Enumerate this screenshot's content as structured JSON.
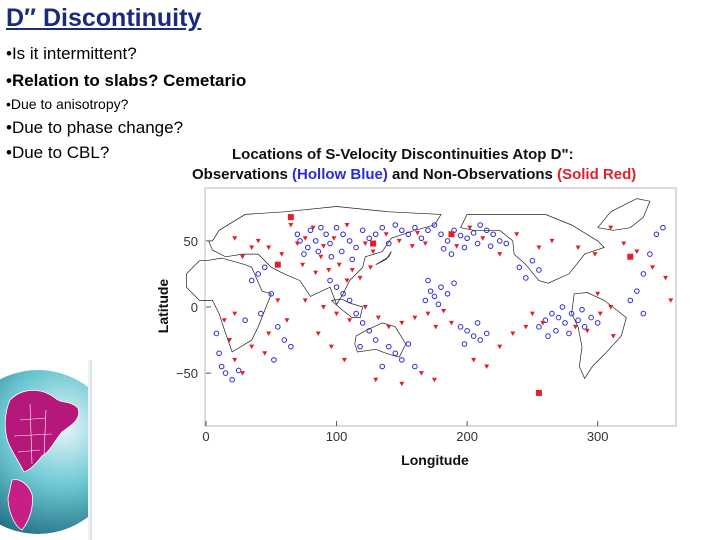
{
  "slide": {
    "title": "D″ Discontinuity",
    "bullets": [
      "•Is it intermittent?",
      "•Relation to slabs? Cemetario",
      "•Due to anisotropy?",
      "•Due to phase change?",
      "•Due to CBL?"
    ]
  },
  "figure": {
    "title_line1": "Locations of S-Velocity Discontinuities Atop D\":",
    "title_line2_a": "Observations ",
    "title_line2_b": "(Hollow Blue)",
    "title_line2_c": " and Non-Observations ",
    "title_line2_d": "(Solid Red)",
    "colors": {
      "observation": "#2c2cd6",
      "non_observation": "#e0202a",
      "land": "#222222"
    }
  },
  "chart_data": {
    "type": "scatter",
    "xlabel": "Longitude",
    "ylabel": "Latitude",
    "xlim": [
      0,
      360
    ],
    "ylim": [
      -90,
      90
    ],
    "x_ticks": [
      "0",
      "100",
      "200",
      "300"
    ],
    "y_ticks": [
      "50",
      "0",
      "−50"
    ],
    "series": [
      {
        "name": "Observations (Hollow Blue)",
        "marker": "hollow",
        "points": [
          [
            70,
            55
          ],
          [
            72,
            50
          ],
          [
            80,
            58
          ],
          [
            78,
            45
          ],
          [
            84,
            50
          ],
          [
            88,
            60
          ],
          [
            92,
            55
          ],
          [
            86,
            42
          ],
          [
            75,
            40
          ],
          [
            95,
            48
          ],
          [
            100,
            60
          ],
          [
            105,
            55
          ],
          [
            110,
            50
          ],
          [
            96,
            38
          ],
          [
            104,
            42
          ],
          [
            115,
            45
          ],
          [
            120,
            58
          ],
          [
            125,
            52
          ],
          [
            112,
            36
          ],
          [
            130,
            55
          ],
          [
            135,
            60
          ],
          [
            140,
            48
          ],
          [
            145,
            62
          ],
          [
            150,
            58
          ],
          [
            155,
            55
          ],
          [
            160,
            60
          ],
          [
            165,
            52
          ],
          [
            170,
            58
          ],
          [
            175,
            62
          ],
          [
            180,
            55
          ],
          [
            185,
            50
          ],
          [
            190,
            58
          ],
          [
            195,
            54
          ],
          [
            200,
            52
          ],
          [
            205,
            56
          ],
          [
            210,
            62
          ],
          [
            215,
            58
          ],
          [
            220,
            55
          ],
          [
            225,
            50
          ],
          [
            230,
            48
          ],
          [
            198,
            45
          ],
          [
            208,
            48
          ],
          [
            218,
            46
          ],
          [
            182,
            44
          ],
          [
            188,
            40
          ],
          [
            170,
            20
          ],
          [
            172,
            12
          ],
          [
            175,
            8
          ],
          [
            180,
            15
          ],
          [
            185,
            10
          ],
          [
            190,
            18
          ],
          [
            168,
            5
          ],
          [
            178,
            2
          ],
          [
            195,
            -15
          ],
          [
            200,
            -18
          ],
          [
            205,
            -22
          ],
          [
            210,
            -25
          ],
          [
            215,
            -20
          ],
          [
            198,
            -28
          ],
          [
            208,
            -12
          ],
          [
            260,
            -10
          ],
          [
            265,
            -5
          ],
          [
            270,
            -8
          ],
          [
            275,
            -12
          ],
          [
            280,
            -5
          ],
          [
            285,
            -10
          ],
          [
            290,
            -15
          ],
          [
            295,
            -8
          ],
          [
            300,
            -12
          ],
          [
            255,
            -15
          ],
          [
            268,
            -18
          ],
          [
            278,
            -20
          ],
          [
            288,
            -2
          ],
          [
            273,
            0
          ],
          [
            262,
            -22
          ],
          [
            240,
            30
          ],
          [
            250,
            35
          ],
          [
            255,
            28
          ],
          [
            245,
            22
          ],
          [
            325,
            5
          ],
          [
            330,
            12
          ],
          [
            335,
            -5
          ],
          [
            40,
            25
          ],
          [
            45,
            30
          ],
          [
            35,
            20
          ],
          [
            50,
            10
          ],
          [
            42,
            -5
          ],
          [
            55,
            -15
          ],
          [
            60,
            -25
          ],
          [
            30,
            -10
          ],
          [
            65,
            -30
          ],
          [
            52,
            -40
          ],
          [
            8,
            -20
          ],
          [
            10,
            -35
          ],
          [
            12,
            -45
          ],
          [
            15,
            -50
          ],
          [
            20,
            -55
          ],
          [
            25,
            -48
          ],
          [
            100,
            15
          ],
          [
            105,
            10
          ],
          [
            110,
            5
          ],
          [
            95,
            20
          ],
          [
            115,
            -5
          ],
          [
            120,
            -12
          ],
          [
            125,
            -18
          ],
          [
            130,
            -25
          ],
          [
            118,
            -30
          ],
          [
            140,
            -30
          ],
          [
            145,
            -35
          ],
          [
            150,
            -40
          ],
          [
            155,
            -28
          ],
          [
            160,
            -45
          ],
          [
            135,
            -45
          ],
          [
            335,
            25
          ],
          [
            340,
            40
          ],
          [
            345,
            55
          ],
          [
            350,
            60
          ]
        ]
      },
      {
        "name": "Non-Observations (Solid Red)",
        "marker": "solid",
        "points": [
          [
            65,
            62
          ],
          [
            76,
            52
          ],
          [
            82,
            60
          ],
          [
            90,
            46
          ],
          [
            98,
            52
          ],
          [
            108,
            62
          ],
          [
            122,
            48
          ],
          [
            128,
            42
          ],
          [
            138,
            55
          ],
          [
            148,
            50
          ],
          [
            158,
            46
          ],
          [
            162,
            56
          ],
          [
            168,
            48
          ],
          [
            192,
            46
          ],
          [
            202,
            60
          ],
          [
            212,
            52
          ],
          [
            70,
            48
          ],
          [
            88,
            38
          ],
          [
            94,
            28
          ],
          [
            102,
            32
          ],
          [
            108,
            20
          ],
          [
            112,
            28
          ],
          [
            118,
            22
          ],
          [
            126,
            30
          ],
          [
            84,
            26
          ],
          [
            74,
            32
          ],
          [
            76,
            5
          ],
          [
            90,
            0
          ],
          [
            100,
            -5
          ],
          [
            110,
            -10
          ],
          [
            122,
            0
          ],
          [
            132,
            -8
          ],
          [
            140,
            -15
          ],
          [
            150,
            -12
          ],
          [
            160,
            -8
          ],
          [
            170,
            -5
          ],
          [
            182,
            -3
          ],
          [
            188,
            -12
          ],
          [
            176,
            -15
          ],
          [
            86,
            -20
          ],
          [
            96,
            -30
          ],
          [
            106,
            -40
          ],
          [
            250,
            -5
          ],
          [
            258,
            -12
          ],
          [
            283,
            -15
          ],
          [
            292,
            -18
          ],
          [
            302,
            -5
          ],
          [
            310,
            0
          ],
          [
            300,
            10
          ],
          [
            312,
            -22
          ],
          [
            45,
            -35
          ],
          [
            35,
            -30
          ],
          [
            28,
            -50
          ],
          [
            48,
            -20
          ],
          [
            55,
            5
          ],
          [
            62,
            -10
          ],
          [
            18,
            -25
          ],
          [
            22,
            -40
          ],
          [
            14,
            -10
          ],
          [
            22,
            -5
          ],
          [
            40,
            50
          ],
          [
            48,
            45
          ],
          [
            58,
            40
          ],
          [
            35,
            45
          ],
          [
            22,
            52
          ],
          [
            28,
            38
          ],
          [
            225,
            40
          ],
          [
            238,
            55
          ],
          [
            255,
            45
          ],
          [
            265,
            50
          ],
          [
            285,
            45
          ],
          [
            298,
            40
          ],
          [
            310,
            60
          ],
          [
            320,
            48
          ],
          [
            330,
            42
          ],
          [
            342,
            30
          ],
          [
            352,
            22
          ],
          [
            356,
            5
          ],
          [
            165,
            -50
          ],
          [
            175,
            -55
          ],
          [
            150,
            -58
          ],
          [
            130,
            -55
          ],
          [
            205,
            -40
          ],
          [
            215,
            -45
          ],
          [
            225,
            -30
          ],
          [
            235,
            -20
          ],
          [
            245,
            -15
          ]
        ]
      },
      {
        "name": "Non-Observations (Solid Red) squares",
        "marker": "solid-square",
        "points": [
          [
            65,
            68
          ],
          [
            128,
            48
          ],
          [
            188,
            55
          ],
          [
            255,
            -65
          ],
          [
            325,
            38
          ],
          [
            55,
            32
          ]
        ]
      }
    ]
  }
}
